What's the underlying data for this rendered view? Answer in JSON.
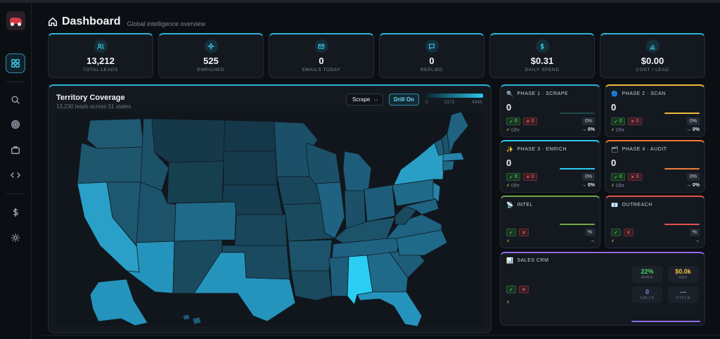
{
  "header": {
    "title": "Dashboard",
    "subtitle": "Global intelligence overview"
  },
  "sidebar": {
    "items": [
      {
        "icon": "grid-icon",
        "active": true
      },
      {
        "icon": "search-icon",
        "active": false
      },
      {
        "icon": "target-icon",
        "active": false
      },
      {
        "icon": "briefcase-icon",
        "active": false
      },
      {
        "icon": "code-icon",
        "active": false
      },
      {
        "icon": "dollar-icon",
        "active": false
      },
      {
        "icon": "gear-icon",
        "active": false
      }
    ]
  },
  "stats": [
    {
      "icon": "users-icon",
      "value": "13,212",
      "label": "TOTAL LEADS"
    },
    {
      "icon": "sparkle-icon",
      "value": "525",
      "label": "ENRICHED"
    },
    {
      "icon": "mail-icon",
      "value": "0",
      "label": "EMAILS TODAY"
    },
    {
      "icon": "chat-icon",
      "value": "0",
      "label": "REPLIED"
    },
    {
      "icon": "dollar-icon",
      "value": "$0.31",
      "label": "DAILY SPEND"
    },
    {
      "icon": "bar-chart-icon",
      "value": "$0.00",
      "label": "COST / LEAD"
    }
  ],
  "map": {
    "title": "Territory Coverage",
    "subtitle": "13,230 leads across 51 states",
    "select_value": "Scrape",
    "drill_label": "Drill On",
    "legend": {
      "min": "0",
      "mid": "2172",
      "max": "4343"
    }
  },
  "phases": [
    {
      "emoji": "🔍",
      "title": "PHASE 1 · SCRAPE",
      "value": "0",
      "ok": "0",
      "fail": "0",
      "pct": "0%",
      "rate": "0/hr",
      "change": "→ 0%",
      "color": "#1c4a4a"
    },
    {
      "emoji": "🔵",
      "title": "PHASE 2 · SCAN",
      "value": "0",
      "ok": "0",
      "fail": "0",
      "pct": "0%",
      "rate": "0/hr",
      "change": "→ 0%",
      "color": "#f0b83a"
    },
    {
      "emoji": "✨",
      "title": "PHASE 3 · ENRICH",
      "value": "0",
      "ok": "0",
      "fail": "0",
      "pct": "0%",
      "rate": "0/hr",
      "change": "→ 0%",
      "color": "#2bc8f0"
    },
    {
      "emoji": "🗂",
      "title": "PHASE 4 · AUDIT",
      "value": "0",
      "ok": "0",
      "fail": "0",
      "pct": "0%",
      "rate": "0/hr",
      "change": "→ 0%",
      "color": "#f07a3a"
    },
    {
      "emoji": "📡",
      "title": "INTEL",
      "value": "",
      "ok": "",
      "fail": "",
      "pct": "%",
      "rate": "",
      "change": "→",
      "color": "#6fa64a"
    },
    {
      "emoji": "📧",
      "title": "OUTREACH",
      "value": "",
      "ok": "",
      "fail": "",
      "pct": "%",
      "rate": "",
      "change": "→",
      "color": "#e2524f"
    }
  ],
  "crm": {
    "emoji": "📊",
    "title": "SALES CRM",
    "kpis": [
      {
        "value": "22%",
        "label": "WIN%",
        "color": "#4bd86a"
      },
      {
        "value": "$0.0k",
        "label": "REV",
        "color": "#f5c542"
      },
      {
        "value": "0",
        "label": "CALLS",
        "color": "#9b7bf0"
      },
      {
        "value": "—",
        "label": "CYCLE",
        "color": "#8a96a3"
      }
    ]
  }
}
